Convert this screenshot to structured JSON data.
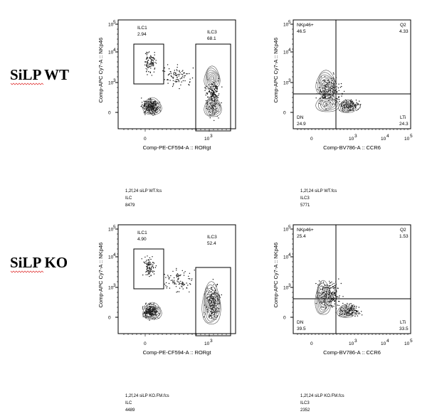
{
  "rows": [
    {
      "label": "SiLP WT",
      "plots": [
        {
          "kind": "ilc",
          "x_axis": "Comp-PE-CF594-A :: RORgt",
          "y_axis": "Comp-APC Cy7-A :: NKp46",
          "gates": [
            {
              "name": "ILC1",
              "value": "2.94"
            },
            {
              "name": "ILC3",
              "value": "68.1"
            }
          ],
          "file": "1,2f,24 siLP WT.fcs",
          "population": "ILC",
          "count": "8479"
        },
        {
          "kind": "quad",
          "x_axis": "Comp-BV786-A :: CCR6",
          "y_axis": "Comp-APC Cy7-A :: NKp46",
          "gates": [
            {
              "name": "NKp46+",
              "value": "46.5"
            },
            {
              "name": "Q2",
              "value": "4.33"
            },
            {
              "name": "DN",
              "value": "24.9"
            },
            {
              "name": "LTi",
              "value": "24.3"
            }
          ],
          "file": "1,2f,24 siLP WT.fcs",
          "population": "ILC3",
          "count": "5771"
        }
      ]
    },
    {
      "label": "SiLP KO",
      "plots": [
        {
          "kind": "ilc",
          "x_axis": "Comp-PE-CF594-A :: RORgt",
          "y_axis": "Comp-APC Cy7-A :: NKp46",
          "gates": [
            {
              "name": "ILC1",
              "value": "4.90"
            },
            {
              "name": "ILC3",
              "value": "52.4"
            }
          ],
          "file": "1,2f,24 siLP KO.FM.fcs",
          "population": "ILC",
          "count": "4489"
        },
        {
          "kind": "quad",
          "x_axis": "Comp-BV786-A :: CCR6",
          "y_axis": "Comp-APC Cy7-A :: NKp46",
          "gates": [
            {
              "name": "NKp46+",
              "value": "25.4"
            },
            {
              "name": "Q2",
              "value": "1.53"
            },
            {
              "name": "DN",
              "value": "39.5"
            },
            {
              "name": "LTi",
              "value": "33.5"
            }
          ],
          "file": "1,2f,24 siLP KO.FM.fcs",
          "population": "ILC3",
          "count": "2352"
        }
      ]
    }
  ],
  "ticks": {
    "x_ilc": [
      "0",
      "10",
      "3"
    ],
    "x_ccr6": [
      "0",
      "10",
      "3",
      "10",
      "4",
      "10",
      "5"
    ],
    "y": [
      "10",
      "5",
      "10",
      "4",
      "10",
      "3",
      "0"
    ]
  },
  "colors": {
    "frame": "#000000",
    "contour": "#555555",
    "dots": "#111111",
    "spellcheck": "#dd2222"
  }
}
